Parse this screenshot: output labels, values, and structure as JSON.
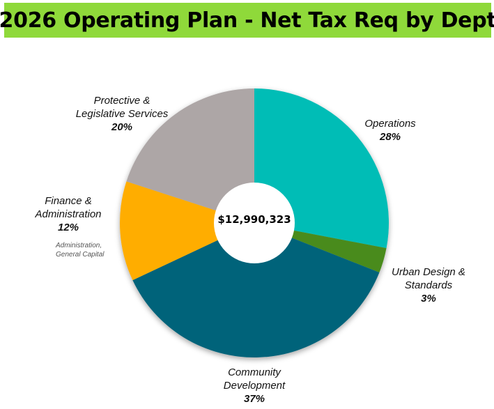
{
  "title": "2026 Operating Plan - Net Tax Req by Dept",
  "title_bg": "#8fd93a",
  "chart_data": {
    "type": "pie",
    "variant": "donut",
    "center_label": "$12,990,323",
    "slices": [
      {
        "label_lines": [
          "Operations"
        ],
        "percent_label": "28%",
        "value": 28,
        "color": "#00bdb6"
      },
      {
        "label_lines": [
          "Urban Design &",
          "Standards"
        ],
        "percent_label": "3%",
        "value": 3,
        "color": "#4a8b1c"
      },
      {
        "label_lines": [
          "Community",
          "Development"
        ],
        "percent_label": "37%",
        "value": 37,
        "color": "#00647a"
      },
      {
        "label_lines": [
          "Finance &",
          "Administration"
        ],
        "percent_label": "12%",
        "value": 12,
        "color": "#ffad00",
        "note_lines": [
          "Administration,",
          "General Capital"
        ]
      },
      {
        "label_lines": [
          "Protective &",
          "Legislative Services"
        ],
        "percent_label": "20%",
        "value": 20,
        "color": "#ada6a6"
      }
    ]
  }
}
